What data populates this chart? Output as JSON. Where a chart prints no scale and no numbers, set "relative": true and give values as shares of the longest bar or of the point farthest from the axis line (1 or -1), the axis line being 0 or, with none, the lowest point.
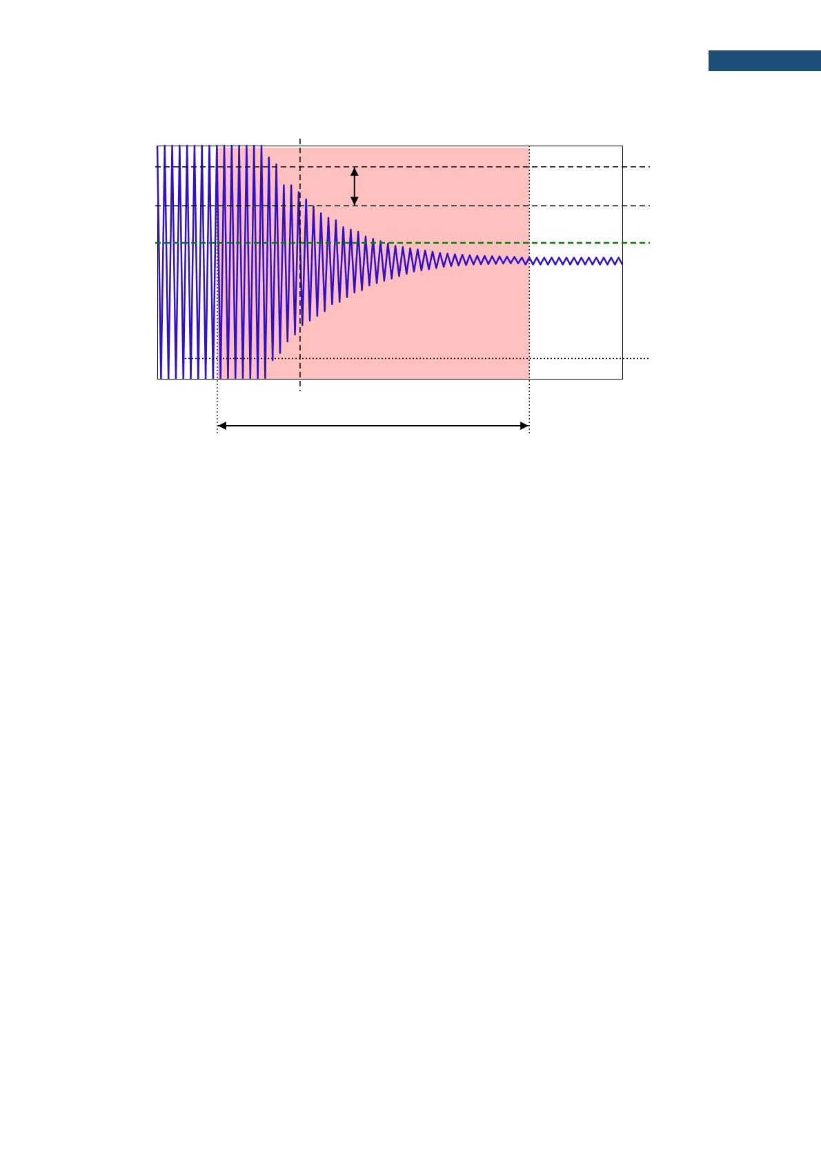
{
  "chart_data": {
    "type": "line",
    "relative": true,
    "categories": [
      null,
      null,
      null,
      null,
      null,
      null,
      null,
      null,
      null,
      null,
      null,
      null,
      null,
      null,
      null,
      null,
      null,
      null,
      null,
      null,
      null,
      null,
      null,
      null,
      null,
      null,
      null,
      null,
      null,
      null,
      null,
      null,
      null,
      null,
      null,
      null,
      null,
      null,
      null,
      null,
      null,
      null,
      null,
      null,
      null,
      null,
      null,
      null,
      null,
      null,
      null,
      null,
      null,
      null,
      null,
      null,
      null,
      null,
      null,
      null,
      null,
      null,
      null,
      null,
      null,
      null,
      null,
      null,
      null,
      null,
      null,
      null,
      null,
      null,
      null,
      null,
      null,
      null,
      null,
      null,
      null,
      null,
      null,
      null,
      null,
      null,
      null,
      null,
      null,
      null,
      null,
      null,
      null,
      null,
      null,
      null,
      null,
      null,
      null,
      null,
      null,
      null,
      null,
      null,
      null,
      null,
      null,
      null,
      null,
      null,
      null,
      null,
      null,
      null,
      null,
      null,
      null,
      null,
      null,
      null,
      null,
      null,
      null,
      null,
      null,
      null
    ],
    "series": [
      {
        "color": "#3010d0",
        "values": [
          1,
          0,
          1,
          0,
          1,
          0,
          1,
          0,
          1,
          0,
          1,
          0,
          1,
          0,
          1,
          0,
          1,
          0,
          1,
          0,
          1,
          0,
          1,
          0,
          1,
          0,
          1,
          0,
          1,
          0,
          0.95,
          0.08,
          0.92,
          0.11,
          0.83,
          0.16,
          0.83,
          0.19,
          0.8,
          0.23,
          0.77,
          0.25,
          0.74,
          0.27,
          0.71,
          0.29,
          0.69,
          0.32,
          0.68,
          0.33,
          0.65,
          0.35,
          0.64,
          0.37,
          0.63,
          0.38,
          0.61,
          0.4,
          0.6,
          0.41,
          0.59,
          0.42,
          0.58,
          0.43,
          0.57,
          0.44,
          0.565,
          0.45,
          0.56,
          0.46,
          0.555,
          0.465,
          0.55,
          0.47,
          0.545,
          0.475,
          0.54,
          0.48,
          0.537,
          0.483,
          0.534,
          0.486,
          0.532,
          0.488,
          0.53,
          0.49,
          0.528,
          0.491,
          0.527,
          0.492,
          0.526,
          0.493,
          0.525,
          0.494,
          0.524,
          0.495,
          0.523,
          0.495,
          0.52,
          0.49,
          0.52,
          0.49,
          0.52,
          0.49,
          0.52,
          0.49,
          0.52,
          0.49,
          0.52,
          0.49,
          0.52,
          0.49,
          0.52,
          0.49,
          0.52,
          0.49,
          0.52,
          0.49,
          0.52,
          0.49,
          0.52,
          0.49,
          0.52,
          0.49,
          0.52,
          0.49
        ]
      }
    ],
    "ref_lines": [
      {
        "axis": "y",
        "value": 0.909,
        "color": "#000000",
        "line_style": "dashed"
      },
      {
        "axis": "y",
        "value": 0.742,
        "color": "#000000",
        "line_style": "dashed"
      },
      {
        "axis": "y",
        "value": 0.583,
        "color": "#008000",
        "line_style": "dashed"
      },
      {
        "axis": "y",
        "value": 0.087,
        "color": "#000000",
        "line_style": "dotted"
      }
    ]
  }
}
